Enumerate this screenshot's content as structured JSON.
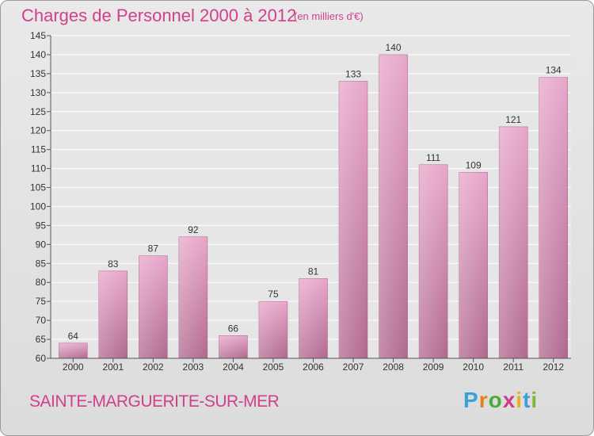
{
  "title": "Charges de Personnel 2000 à 2012",
  "subtitle": "(en milliers d'€)",
  "commune": "SAINTE-MARGUERITE-SUR-MER",
  "logo": {
    "letters": [
      "P",
      "r",
      "o",
      "x",
      "i",
      "t",
      "i"
    ],
    "colors": [
      "#3aa0d8",
      "#e8801a",
      "#4aaa3a",
      "#d03a8a",
      "#e8b01a",
      "#3aa0d8",
      "#7ab83a"
    ]
  },
  "chart_data": {
    "type": "bar",
    "categories": [
      "2000",
      "2001",
      "2002",
      "2003",
      "2004",
      "2005",
      "2006",
      "2007",
      "2008",
      "2009",
      "2010",
      "2011",
      "2012"
    ],
    "values": [
      64,
      83,
      87,
      92,
      66,
      75,
      81,
      133,
      140,
      111,
      109,
      121,
      134
    ],
    "ylim": [
      60,
      145
    ],
    "yticks": [
      60,
      65,
      70,
      75,
      80,
      85,
      90,
      95,
      100,
      105,
      110,
      115,
      120,
      125,
      130,
      135,
      140,
      145
    ],
    "grid": true,
    "bar_color": "#c97aa6"
  }
}
